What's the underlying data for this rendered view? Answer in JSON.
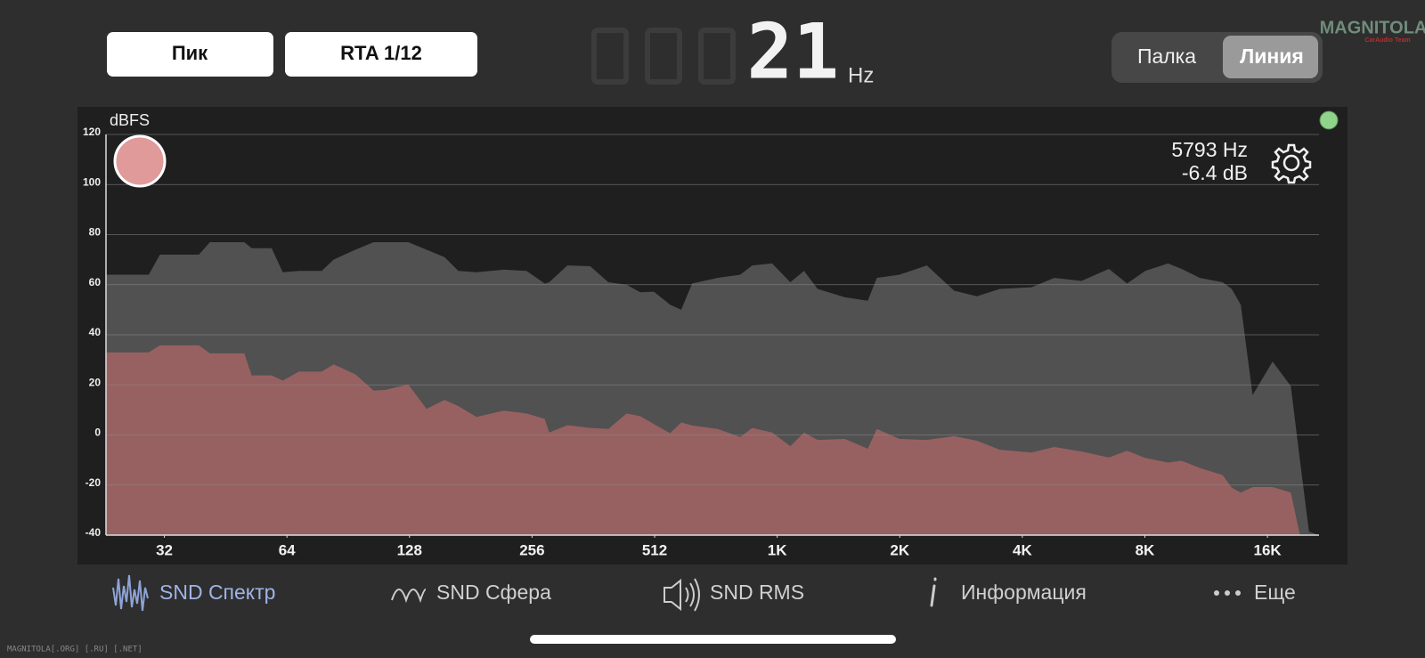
{
  "buttons": {
    "peak": "Пик",
    "rta": "RTA 1/12"
  },
  "display": {
    "value": "21",
    "unit": "Hz"
  },
  "toggle": {
    "options": [
      "Палка",
      "Линия"
    ],
    "active": 1
  },
  "logo": {
    "name": "MAGNITOLA",
    "team": "CarAudio Team"
  },
  "chart_data": {
    "type": "area",
    "ylabel": "dBFS",
    "readout": {
      "frequency": "5793 Hz",
      "level": "-6.4 dB"
    },
    "x_scale": "log",
    "xlim": [
      23,
      21933
    ],
    "ylim": [
      -40,
      120
    ],
    "xticks": [
      32,
      64,
      128,
      256,
      512,
      {
        "value": 1024,
        "label": "1K"
      },
      {
        "value": 2048,
        "label": "2K"
      },
      {
        "value": 4096,
        "label": "4K"
      },
      {
        "value": 8192,
        "label": "8K"
      },
      {
        "value": 16384,
        "label": "16K"
      }
    ],
    "yticks": [
      -40,
      -20,
      0,
      20,
      40,
      60,
      80,
      100,
      120
    ],
    "grid": true,
    "x": [
      23,
      29.3,
      31.2,
      38.9,
      41.4,
      50.3,
      52.4,
      58.7,
      62.5,
      68.5,
      77.9,
      83.3,
      94.3,
      104.5,
      111.7,
      127.1,
      140.9,
      156.1,
      168.7,
      186.9,
      218.2,
      248.1,
      275,
      282,
      312.7,
      355.6,
      394.2,
      437,
      472,
      510,
      559,
      595,
      633,
      731,
      831,
      889,
      995,
      1103,
      1192,
      1287,
      1502,
      1709,
      1799,
      2046,
      2387,
      2786,
      3169,
      3604,
      4315,
      4907,
      5725,
      6683,
      7406,
      8209,
      9339,
      10086,
      11177,
      12714,
      13385,
      14090,
      15067,
      16870,
      18700,
      19686,
      20727,
      21933
    ],
    "series": [
      {
        "color": "#515151",
        "values": [
          64,
          64,
          72,
          72,
          77,
          77,
          74.6,
          74.6,
          65,
          65.5,
          65.5,
          70,
          74,
          77,
          77,
          77,
          74,
          71,
          65.5,
          65,
          66,
          65.5,
          60.5,
          61,
          67.7,
          67.4,
          61,
          60,
          57,
          57.2,
          52,
          50,
          60.5,
          62.7,
          64,
          67.7,
          68.5,
          61,
          65.5,
          58.3,
          55,
          53.6,
          62.7,
          64,
          67.7,
          57.6,
          55.4,
          58.3,
          59,
          62.7,
          61.5,
          66.3,
          60.5,
          65.5,
          68.5,
          66.3,
          62.7,
          61,
          58.3,
          52,
          15.9,
          29.3,
          19.5,
          -10,
          -38.6,
          -40
        ]
      },
      {
        "color": "#9c6262",
        "values": [
          33,
          33,
          35.8,
          35.8,
          32.6,
          32.6,
          23.8,
          23.8,
          21.7,
          25.3,
          25.3,
          28.2,
          24.2,
          17.7,
          18,
          20.2,
          10.4,
          14,
          11.5,
          7.2,
          9.7,
          8.6,
          6.4,
          1,
          3.9,
          2.8,
          2.4,
          8.6,
          7.5,
          4.3,
          0.7,
          5,
          3.8,
          2.4,
          -0.8,
          2.8,
          1,
          -4.5,
          1,
          -2,
          -1.6,
          -5.5,
          2.4,
          -1.6,
          -2,
          -0.5,
          -2.3,
          -5.9,
          -7,
          -4.8,
          -6.6,
          -9,
          -6.3,
          -9.2,
          -11,
          -10.3,
          -13.2,
          -16,
          -21,
          -23,
          -20.8,
          -20.8,
          -23,
          -40,
          -40,
          -40
        ]
      }
    ]
  },
  "tabs": [
    "SND Спектр",
    "SND Сфера",
    "SND RMS",
    "Информация",
    "Еще"
  ],
  "footer": "MAGNITOLA[.ORG] [.RU] [.NET]"
}
